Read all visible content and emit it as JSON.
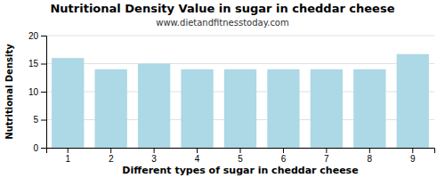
{
  "chart_data": {
    "type": "bar",
    "title": "Nutritional Density Value in sugar in cheddar cheese",
    "subtitle": "www.dietandfitnesstoday.com",
    "xlabel": "Different types of sugar in cheddar cheese",
    "ylabel": "Nutritional Density",
    "categories": [
      1,
      2,
      3,
      4,
      5,
      6,
      7,
      8,
      9
    ],
    "values": [
      16.0,
      14.0,
      15.0,
      14.0,
      14.0,
      14.0,
      14.0,
      14.0,
      16.7
    ],
    "color": "#add8e6",
    "ylim": [
      0,
      20
    ],
    "yticks": [
      0,
      5,
      10,
      15,
      20
    ],
    "grid": true
  }
}
